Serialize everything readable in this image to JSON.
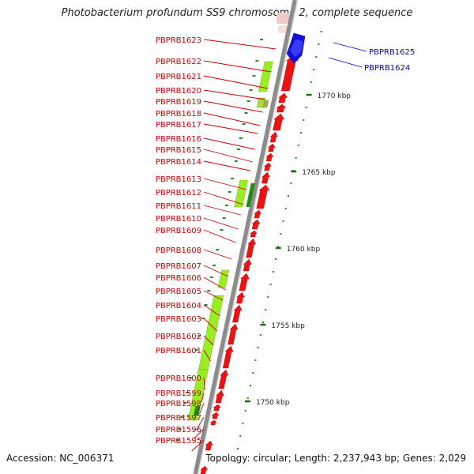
{
  "title": "Photobacterium profundum SS9 chromosome 2, complete sequence",
  "footer": {
    "accession": "Accession: NC_006371",
    "summary": "Topology: circular; Length: 2,237,943 bp; Genes: 2,029"
  },
  "scale": {
    "unit": "kbp",
    "labels": [
      "1770 kbp",
      "1765 kbp",
      "1760 kbp",
      "1755 kbp",
      "1750 kbp"
    ]
  },
  "colors": {
    "forward_gene": "#ee1111",
    "reverse_gene": "#1111dd",
    "cds_feature": "#99ee22",
    "label_red": "#cc0000",
    "label_blue": "#0000cc",
    "tick": "#2a8a2a",
    "backbone": "#8c8c8c"
  },
  "genes_left": [
    "PBPRB1623",
    "PBPRB1622",
    "PBPRB1621",
    "PBPRB1620",
    "PBPRB1619",
    "PBPRB1618",
    "PBPRB1617",
    "PBPRB1616",
    "PBPRB1615",
    "PBPRB1614",
    "PBPRB1613",
    "PBPRB1612",
    "PBPRB1611",
    "PBPRB1610",
    "PBPRB1609",
    "PBPRB1608",
    "PBPRB1607",
    "PBPRB1606",
    "PBPRB1605",
    "PBPRB1604",
    "PBPRB1603",
    "PBPRB1602",
    "PBPRB1601",
    "PBPRB1600",
    "PBPRB1599",
    "PBPRB1598",
    "PBPRB1597",
    "PBPRB1596",
    "PBPRB1595"
  ],
  "genes_right": [
    "PBPRB1625",
    "PBPRB1624"
  ]
}
